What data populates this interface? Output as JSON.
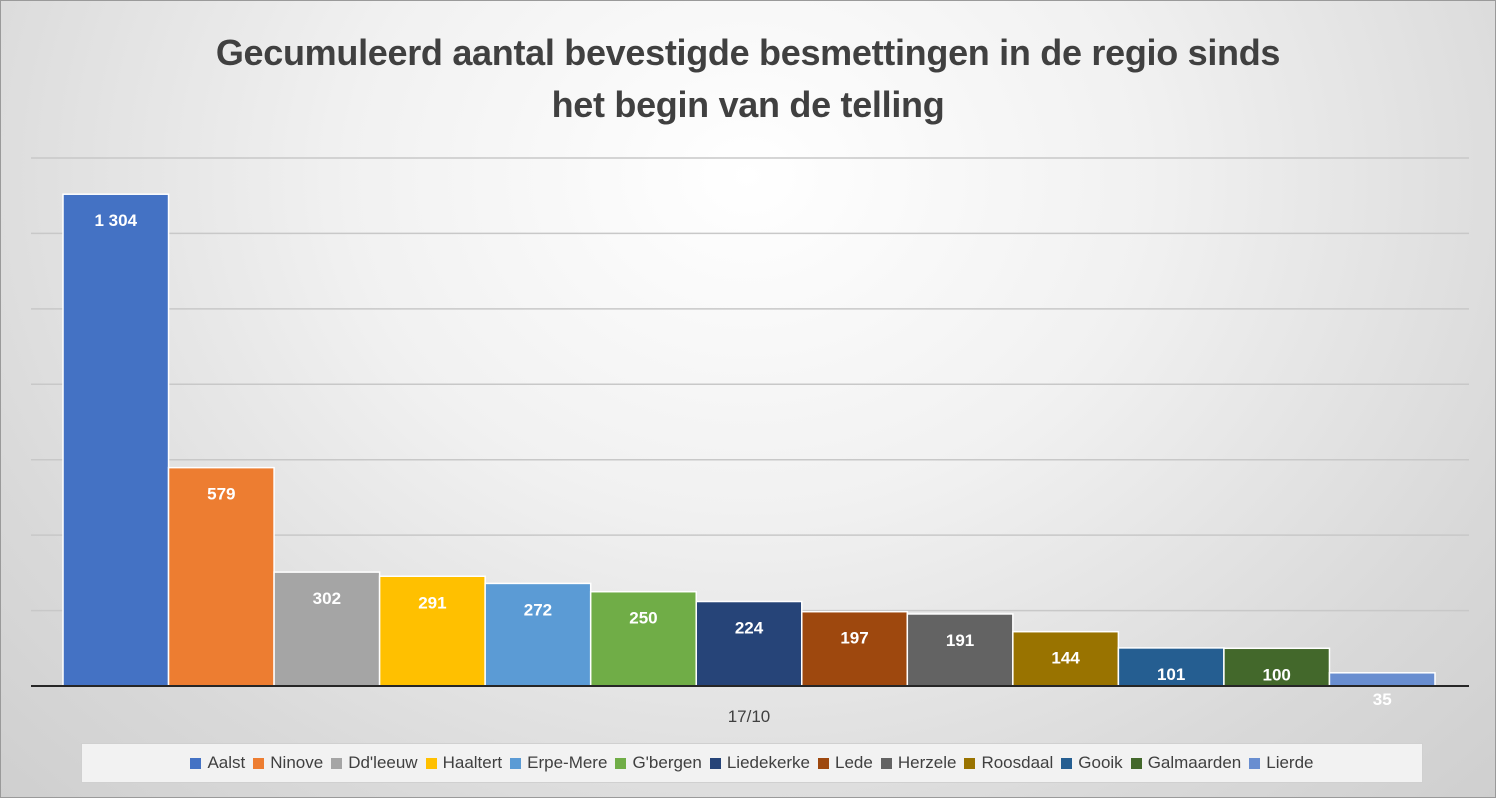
{
  "chart_data": {
    "type": "bar",
    "title": "Gecumuleerd aantal bevestigde besmettingen in de regio sinds het begin van de telling",
    "title_lines": [
      "Gecumuleerd aantal bevestigde besmettingen in de regio sinds",
      "het begin van de telling"
    ],
    "categories": [
      "17/10"
    ],
    "xlabel": "",
    "ylabel": "",
    "ylim": [
      0,
      1400
    ],
    "grid": true,
    "legend_position": "bottom",
    "series": [
      {
        "name": "Aalst",
        "values": [
          1304
        ],
        "label": "1 304",
        "color": "#4472C4"
      },
      {
        "name": "Ninove",
        "values": [
          579
        ],
        "label": "579",
        "color": "#ED7D31"
      },
      {
        "name": "Dd'leeuw",
        "values": [
          302
        ],
        "label": "302",
        "color": "#A5A5A5"
      },
      {
        "name": "Haaltert",
        "values": [
          291
        ],
        "label": "291",
        "color": "#FFC000"
      },
      {
        "name": "Erpe-Mere",
        "values": [
          272
        ],
        "label": "272",
        "color": "#5B9BD5"
      },
      {
        "name": "G'bergen",
        "values": [
          250
        ],
        "label": "250",
        "color": "#70AD47"
      },
      {
        "name": "Liedekerke",
        "values": [
          224
        ],
        "label": "224",
        "color": "#264478"
      },
      {
        "name": "Lede",
        "values": [
          197
        ],
        "label": "197",
        "color": "#9E480E"
      },
      {
        "name": "Herzele",
        "values": [
          191
        ],
        "label": "191",
        "color": "#636363"
      },
      {
        "name": "Roosdaal",
        "values": [
          144
        ],
        "label": "144",
        "color": "#997300"
      },
      {
        "name": "Gooik",
        "values": [
          101
        ],
        "label": "101",
        "color": "#255E91"
      },
      {
        "name": "Galmaarden",
        "values": [
          100
        ],
        "label": "100",
        "color": "#43682B"
      },
      {
        "name": "Lierde",
        "values": [
          35
        ],
        "label": "35",
        "color": "#698ED0"
      }
    ]
  }
}
